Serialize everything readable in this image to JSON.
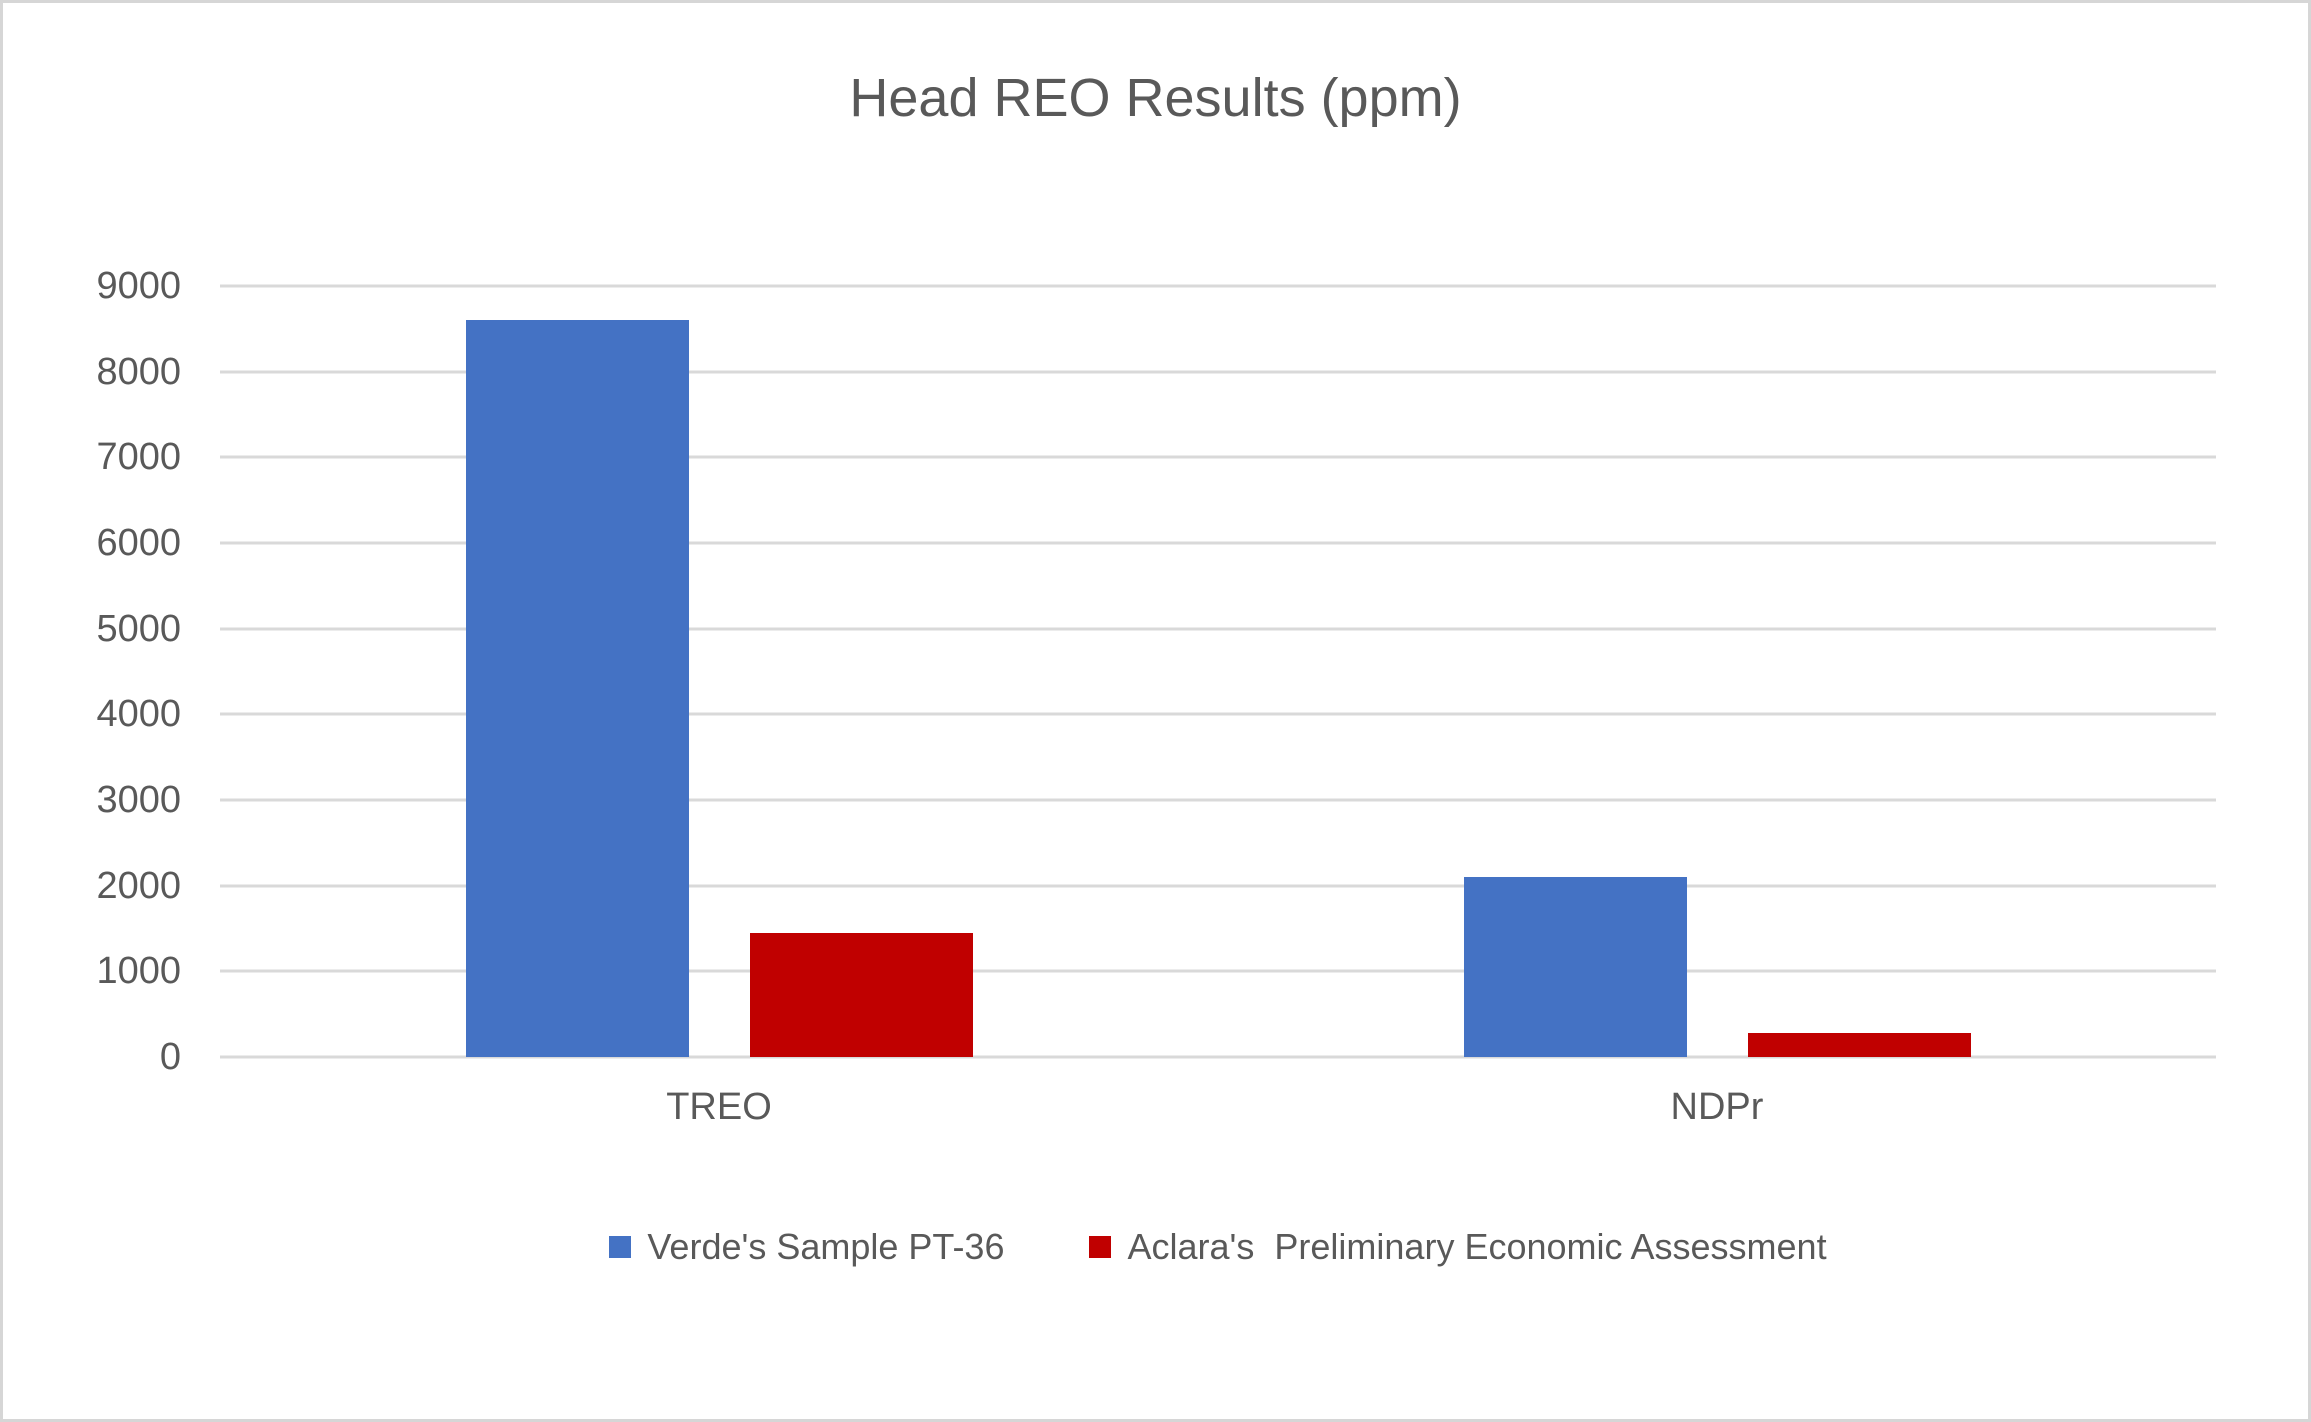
{
  "frame": {
    "background": "#ffffff",
    "border_color": "#d6d6d6",
    "text_color": "#595959"
  },
  "chart_data": {
    "type": "bar",
    "title": "Head REO Results (ppm)",
    "categories": [
      "TREO",
      "NDPr"
    ],
    "series": [
      {
        "name": "Verde's Sample PT-36",
        "color": "#4472C4",
        "values": [
          8600,
          2100
        ]
      },
      {
        "name": "Aclara's  Preliminary Economic Assessment",
        "color": "#C00000",
        "values": [
          1450,
          280
        ]
      }
    ],
    "xlabel": "",
    "ylabel": "",
    "ylim": [
      0,
      9000
    ],
    "yticks": [
      0,
      1000,
      2000,
      3000,
      4000,
      5000,
      6000,
      7000,
      8000,
      9000
    ],
    "grid": true,
    "gridline_color": "#D9D9D9",
    "legend_position": "bottom"
  }
}
